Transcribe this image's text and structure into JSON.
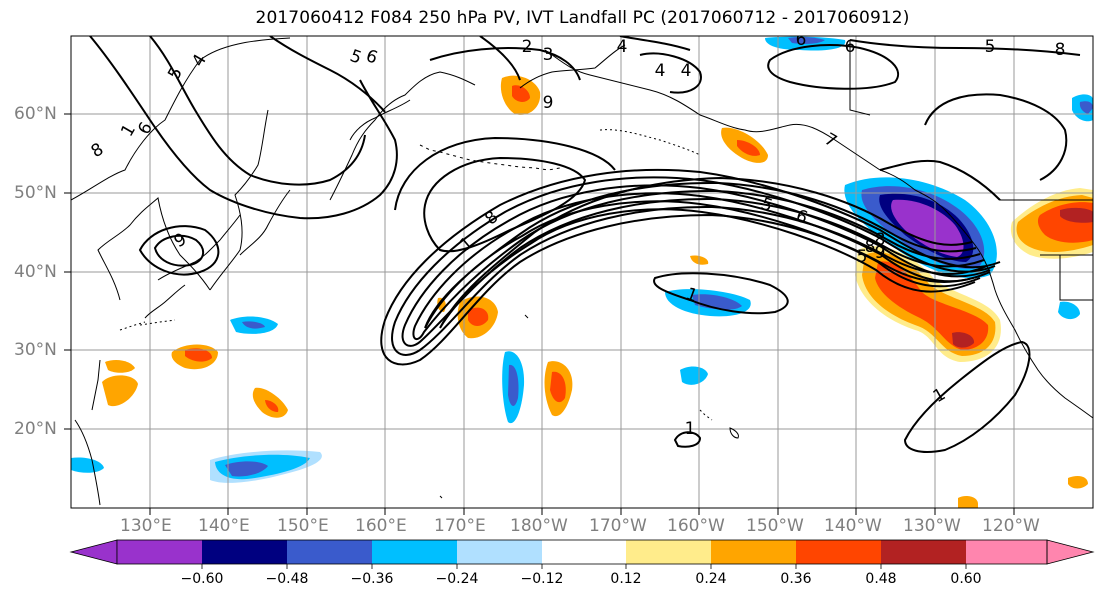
{
  "map": {
    "title": "2017060412 F084 250 hPa PV, IVT Landfall PC (2017060712 - 2017060912)",
    "lat_labels": [
      "60°N",
      "50°N",
      "40°N",
      "30°N",
      "20°N"
    ],
    "lon_labels": [
      "130°E",
      "140°E",
      "150°E",
      "160°E",
      "170°E",
      "180°W",
      "170°W",
      "160°W",
      "150°W",
      "140°W",
      "130°W",
      "120°W"
    ],
    "contour_labels": [
      "5",
      "4",
      "8",
      "1",
      "6",
      "9",
      "6",
      "5",
      "2",
      "3",
      "4",
      "4",
      "5",
      "6",
      "8",
      "6",
      "4",
      "5",
      "8",
      "1",
      "9",
      "8",
      "7",
      "5",
      "6",
      "8",
      "9",
      "1",
      "1",
      "1"
    ],
    "colors": {
      "grid": "#999999",
      "coast": "#000000",
      "axis_label": "#7f7f7f"
    }
  },
  "colorbar": {
    "tick_labels": [
      "−0.60",
      "−0.48",
      "−0.36",
      "−0.24",
      "−0.12",
      "0.12",
      "0.24",
      "0.36",
      "0.48",
      "0.60"
    ],
    "bins": [
      {
        "color": "#9932CC"
      },
      {
        "color": "#000080"
      },
      {
        "color": "#3A5BCC"
      },
      {
        "color": "#00BFFF"
      },
      {
        "color": "#B0E0FF"
      },
      {
        "color": "#FFFFFF"
      },
      {
        "color": "#FFEC8B"
      },
      {
        "color": "#FFA500"
      },
      {
        "color": "#FF4500"
      },
      {
        "color": "#B22222"
      },
      {
        "color": "#FF85AE"
      }
    ]
  }
}
